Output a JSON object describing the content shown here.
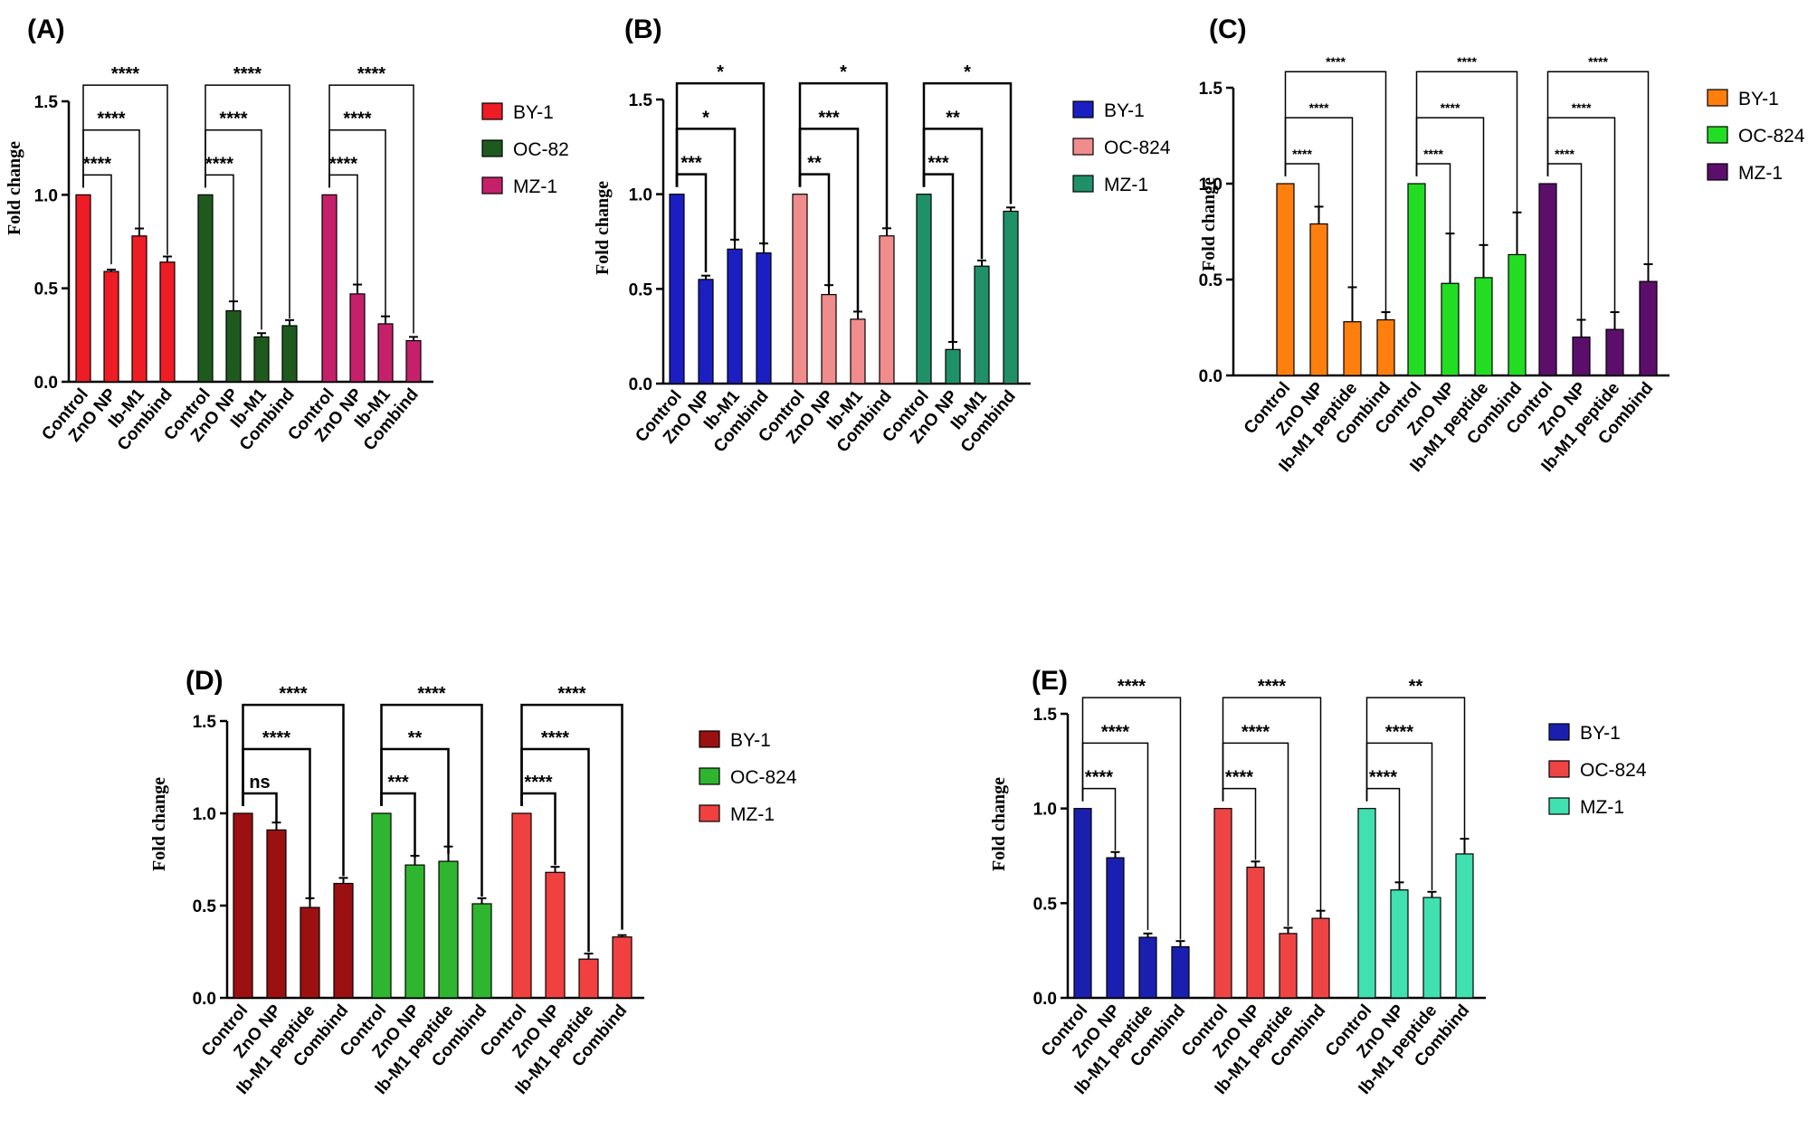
{
  "chart_data": [
    {
      "type": "bar",
      "panel_label": "(A)",
      "ylabel": "Fold change",
      "ylim": [
        0,
        1.5
      ],
      "yticks": [
        "0.0",
        "0.5",
        "1.0",
        "1.5"
      ],
      "categories": [
        "Control",
        "ZnO NP",
        "Ib-M1",
        "Combind"
      ],
      "legend": [
        "BY-1",
        "OC-82",
        "MZ-1"
      ],
      "colors": [
        "#ee1c24",
        "#1e5a1e",
        "#c5216b"
      ],
      "series": [
        {
          "name": "BY-1",
          "values": [
            1.0,
            0.59,
            0.78,
            0.64
          ],
          "errors": [
            0,
            0.01,
            0.04,
            0.03
          ]
        },
        {
          "name": "OC-82",
          "values": [
            1.0,
            0.38,
            0.24,
            0.3
          ],
          "errors": [
            0,
            0.05,
            0.02,
            0.03
          ]
        },
        {
          "name": "MZ-1",
          "values": [
            1.0,
            0.47,
            0.31,
            0.22
          ],
          "errors": [
            0,
            0.05,
            0.04,
            0.02
          ]
        }
      ],
      "significance": [
        [
          "****",
          "****",
          "****"
        ],
        [
          "****",
          "****",
          "****"
        ],
        [
          "****",
          "****",
          "****"
        ]
      ],
      "sig_small": false
    },
    {
      "type": "bar",
      "panel_label": "(B)",
      "ylabel": "Fold change",
      "ylim": [
        0,
        1.5
      ],
      "yticks": [
        "0.0",
        "0.5",
        "1.0",
        "1.5"
      ],
      "categories": [
        "Control",
        "ZnO NP",
        "Ib-M1",
        "Combind"
      ],
      "legend": [
        "BY-1",
        "OC-824",
        "MZ-1"
      ],
      "colors": [
        "#1b1fc1",
        "#f08c8c",
        "#1f9068"
      ],
      "series": [
        {
          "name": "BY-1",
          "values": [
            1.0,
            0.55,
            0.71,
            0.69
          ],
          "errors": [
            0,
            0.02,
            0.05,
            0.05
          ]
        },
        {
          "name": "OC-824",
          "values": [
            1.0,
            0.47,
            0.34,
            0.78
          ],
          "errors": [
            0,
            0.05,
            0.04,
            0.04
          ]
        },
        {
          "name": "MZ-1",
          "values": [
            1.0,
            0.18,
            0.62,
            0.91
          ],
          "errors": [
            0,
            0.04,
            0.03,
            0.02
          ]
        }
      ],
      "significance": [
        [
          "***",
          "*",
          "*"
        ],
        [
          "**",
          "***",
          "*"
        ],
        [
          "***",
          "**",
          "*"
        ]
      ],
      "sig_small": false
    },
    {
      "type": "bar",
      "panel_label": "(C)",
      "ylabel": "Fold change",
      "ylim": [
        0,
        1.5
      ],
      "yticks": [
        "0.0",
        "0.5",
        "1.0",
        "1.5"
      ],
      "categories": [
        "Control",
        "ZnO NP",
        "Ib-M1 peptide",
        "Combind"
      ],
      "legend": [
        "BY-1",
        "OC-824",
        "MZ-1"
      ],
      "colors": [
        "#ff7f0e",
        "#22dd22",
        "#5b0f6b"
      ],
      "series": [
        {
          "name": "BY-1",
          "values": [
            1.0,
            0.79,
            0.28,
            0.29
          ],
          "errors": [
            0,
            0.09,
            0.18,
            0.04
          ]
        },
        {
          "name": "OC-824",
          "values": [
            1.0,
            0.48,
            0.51,
            0.63
          ],
          "errors": [
            0,
            0.26,
            0.17,
            0.22
          ]
        },
        {
          "name": "MZ-1",
          "values": [
            1.0,
            0.2,
            0.24,
            0.49
          ],
          "errors": [
            0,
            0.09,
            0.09,
            0.09
          ]
        }
      ],
      "significance": [
        [
          "****",
          "****",
          "****"
        ],
        [
          "****",
          "****",
          "****"
        ],
        [
          "****",
          "****",
          "****"
        ]
      ],
      "sig_small": true
    },
    {
      "type": "bar",
      "panel_label": "(D)",
      "ylabel": "Fold change",
      "ylim": [
        0,
        1.5
      ],
      "yticks": [
        "0.0",
        "0.5",
        "1.0",
        "1.5"
      ],
      "categories": [
        "Control",
        "ZnO NP",
        "Ib-M1 peptide",
        "Combind"
      ],
      "legend": [
        "BY-1",
        "OC-824",
        "MZ-1"
      ],
      "colors": [
        "#9b1010",
        "#2fb52f",
        "#f04040"
      ],
      "series": [
        {
          "name": "BY-1",
          "values": [
            1.0,
            0.91,
            0.49,
            0.62
          ],
          "errors": [
            0,
            0.04,
            0.05,
            0.03
          ]
        },
        {
          "name": "OC-824",
          "values": [
            1.0,
            0.72,
            0.74,
            0.51
          ],
          "errors": [
            0,
            0.05,
            0.08,
            0.03
          ]
        },
        {
          "name": "MZ-1",
          "values": [
            1.0,
            0.68,
            0.21,
            0.33
          ],
          "errors": [
            0,
            0.03,
            0.03,
            0.01
          ]
        }
      ],
      "significance": [
        [
          "ns",
          "****",
          "****"
        ],
        [
          "***",
          "**",
          "****"
        ],
        [
          "****",
          "****",
          "****"
        ]
      ],
      "sig_small": false
    },
    {
      "type": "bar",
      "panel_label": "(E)",
      "ylabel": "Fold change",
      "ylim": [
        0,
        1.5
      ],
      "yticks": [
        "0.0",
        "0.5",
        "1.0",
        "1.5"
      ],
      "categories": [
        "Control",
        "ZnO NP",
        "Ib-M1 peptide",
        "Combind"
      ],
      "legend": [
        "BY-1",
        "OC-824",
        "MZ-1"
      ],
      "colors": [
        "#1b1fb0",
        "#ee4444",
        "#40e0b0"
      ],
      "series": [
        {
          "name": "BY-1",
          "values": [
            1.0,
            0.74,
            0.32,
            0.27
          ],
          "errors": [
            0,
            0.03,
            0.02,
            0.03
          ]
        },
        {
          "name": "OC-824",
          "values": [
            1.0,
            0.69,
            0.34,
            0.42
          ],
          "errors": [
            0,
            0.03,
            0.03,
            0.04
          ]
        },
        {
          "name": "MZ-1",
          "values": [
            1.0,
            0.57,
            0.53,
            0.76
          ],
          "errors": [
            0,
            0.04,
            0.03,
            0.08
          ]
        }
      ],
      "significance": [
        [
          "****",
          "****",
          "****"
        ],
        [
          "****",
          "****",
          "****"
        ],
        [
          "****",
          "****",
          "**"
        ]
      ],
      "sig_small": false
    }
  ]
}
